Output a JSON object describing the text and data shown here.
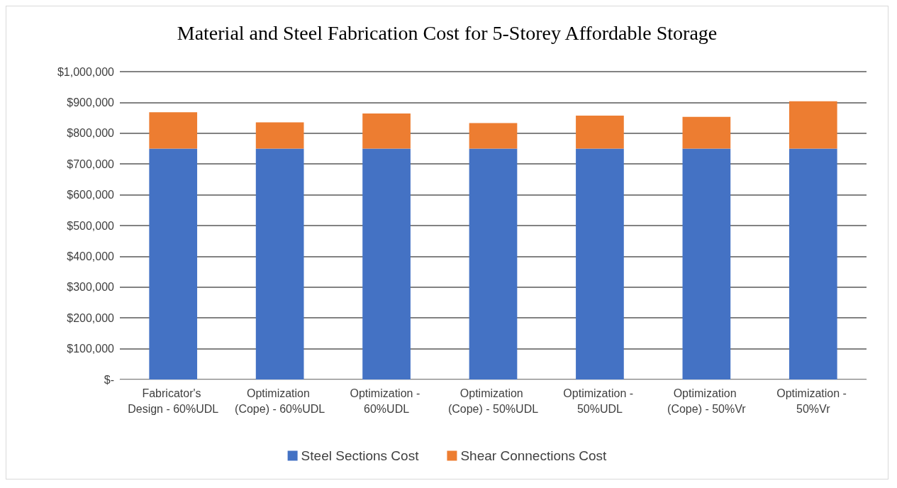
{
  "chart_data": {
    "type": "bar",
    "title": "Material and Steel Fabrication Cost for 5-Storey Affordable Storage",
    "categories": [
      "Fabricator's Design - 60%UDL",
      "Optimization (Cope) - 60%UDL",
      "Optimization - 60%UDL",
      "Optimization (Cope) - 50%UDL",
      "Optimization - 50%UDL",
      "Optimization (Cope) - 50%Vr",
      "Optimization - 50%Vr"
    ],
    "stacked": true,
    "series": [
      {
        "name": "Steel Sections Cost",
        "color": "#4472c4",
        "values": [
          750000,
          750000,
          750000,
          750000,
          750000,
          750000,
          750000
        ]
      },
      {
        "name": "Shear Connections Cost",
        "color": "#ed7d31",
        "values": [
          118000,
          85000,
          114000,
          83000,
          107000,
          103000,
          154000
        ]
      }
    ],
    "ylim": [
      0,
      1000000
    ],
    "yticks": [
      {
        "value": 0,
        "label": "$-"
      },
      {
        "value": 100000,
        "label": "$100,000"
      },
      {
        "value": 200000,
        "label": "$200,000"
      },
      {
        "value": 300000,
        "label": "$300,000"
      },
      {
        "value": 400000,
        "label": "$400,000"
      },
      {
        "value": 500000,
        "label": "$500,000"
      },
      {
        "value": 600000,
        "label": "$600,000"
      },
      {
        "value": 700000,
        "label": "$700,000"
      },
      {
        "value": 800000,
        "label": "$800,000"
      },
      {
        "value": 900000,
        "label": "$900,000"
      },
      {
        "value": 1000000,
        "label": "$1,000,000"
      }
    ],
    "grid": "y",
    "legend": "bottom"
  }
}
